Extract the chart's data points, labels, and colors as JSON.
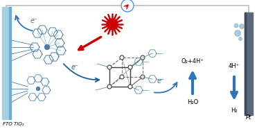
{
  "bg_color": "#ffffff",
  "fto_color": "#a8cfe0",
  "fto_edge_color": "#6aaed6",
  "pt_color": "#5a6a7a",
  "pt_edge_color": "#3a4a5a",
  "wire_color": "#c8c8c8",
  "arrow_blue": "#2e75b6",
  "arrow_mid_blue": "#1f5c9e",
  "sun_color": "#cc0000",
  "red_arrow_color": "#cc0000",
  "dye_color": "#4a7faa",
  "cubane_line": "#3a3a3a",
  "cubane_atom": "#888888",
  "phenyl_color": "#5a8aaa",
  "text_fto": "FTO TiO₂",
  "text_pt": "Pt",
  "text_eminus": "e⁻",
  "text_o2": "O₂+4H⁺",
  "text_h2o": "H₂O",
  "text_4h": "4H⁺",
  "text_h2": "H₂",
  "bubble_color": "#90b8d0"
}
